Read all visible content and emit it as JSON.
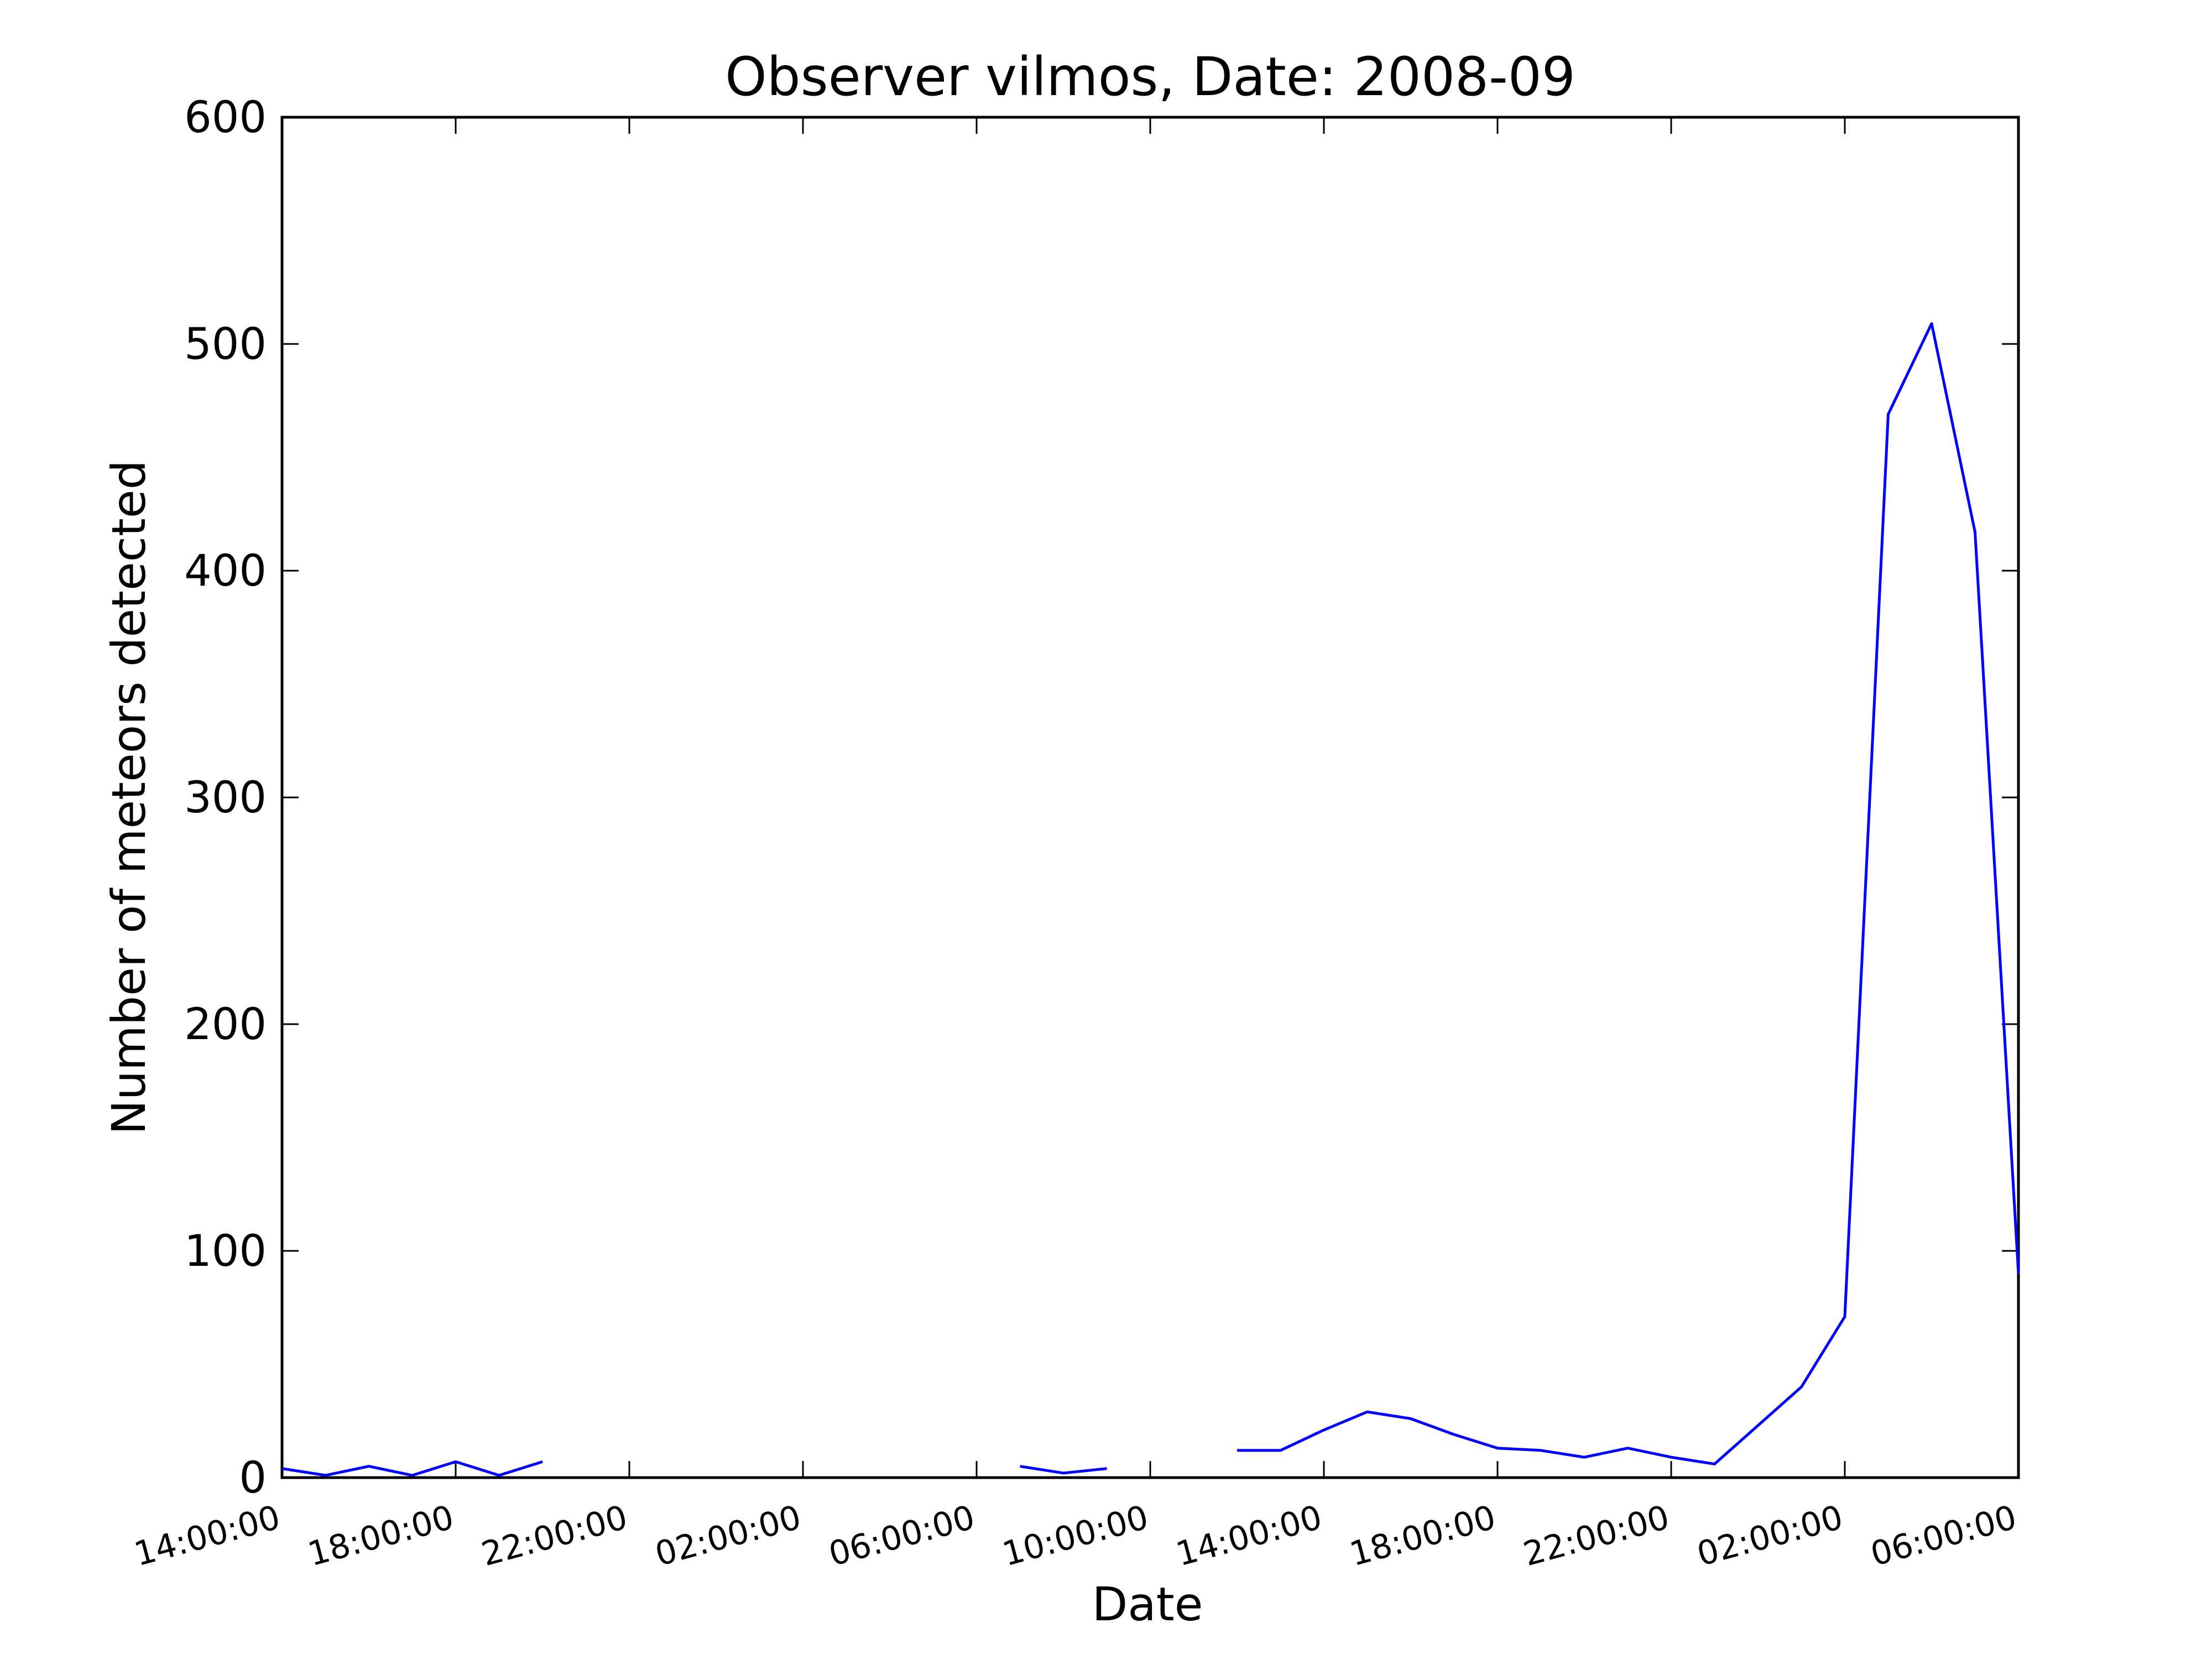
{
  "chart_data": {
    "type": "line",
    "title": "Observer vilmos, Date: 2008-09",
    "xlabel": "Date",
    "ylabel": "Number of meteors detected",
    "ylim": [
      0,
      600
    ],
    "yticks": [
      0,
      100,
      200,
      300,
      400,
      500,
      600
    ],
    "xlim": [
      "14:00:00",
      "06:00:00"
    ],
    "xticks": [
      "14:00:00",
      "18:00:00",
      "22:00:00",
      "02:00:00",
      "06:00:00",
      "10:00:00",
      "14:00:00",
      "18:00:00",
      "22:00:00",
      "02:00:00",
      "06:00:00"
    ],
    "grid": false,
    "color": "#0000ff",
    "x_step_hours": 1,
    "series": [
      {
        "segments": [
          {
            "x": [
              "14:00:00",
              "15:00:00",
              "16:00:00",
              "17:00:00",
              "18:00:00",
              "19:00:00",
              "20:00:00"
            ],
            "y": [
              4,
              1,
              5,
              1,
              7,
              1,
              7
            ]
          },
          {
            "x": [
              "07:00:00",
              "08:00:00",
              "09:00:00"
            ],
            "y": [
              5,
              2,
              4
            ]
          },
          {
            "x": [
              "12:00:00",
              "13:00:00",
              "14:00:00",
              "15:00:00",
              "16:00:00",
              "17:00:00",
              "18:00:00",
              "19:00:00",
              "20:00:00",
              "21:00:00",
              "22:00:00",
              "23:00:00",
              "00:00:00",
              "01:00:00",
              "02:00:00",
              "03:00:00",
              "04:00:00",
              "05:00:00",
              "06:00:00"
            ],
            "y": [
              12,
              12,
              21,
              29,
              26,
              19,
              13,
              12,
              9,
              13,
              9,
              6,
              23,
              40,
              71,
              469,
              509,
              417,
              90
            ]
          }
        ]
      }
    ]
  }
}
